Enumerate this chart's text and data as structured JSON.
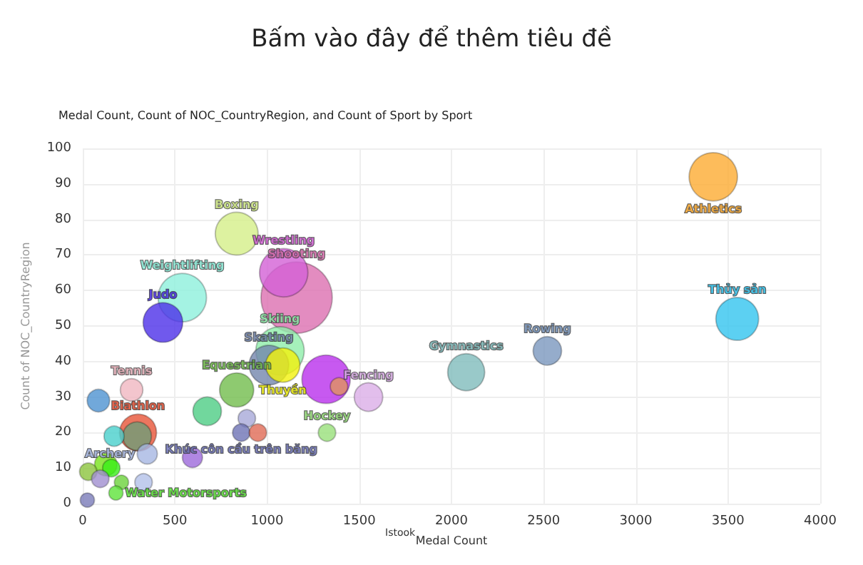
{
  "chart_data": {
    "type": "bubble",
    "title": "Bấm vào đây để thêm tiêu đề",
    "subtitle": "Medal Count, Count of NOC_CountryRegion, and Count of Sport by Sport",
    "xlabel": "Medal Count",
    "ylabel": "Count of NOC_CountryRegion",
    "xlim": [
      0,
      4000
    ],
    "xticks": [
      0,
      500,
      1000,
      1500,
      2000,
      2500,
      3000,
      3500,
      4000
    ],
    "ylim": [
      0,
      100
    ],
    "yticks": [
      0,
      10,
      20,
      30,
      40,
      50,
      60,
      70,
      80,
      90,
      100
    ],
    "grid": true,
    "legend": false,
    "annotations": [
      "Istook"
    ],
    "series": [
      {
        "name": "Shooting",
        "color": "#dc6fb0",
        "x": [
          1160
        ],
        "values": [
          58
        ],
        "sizes": [
          1
        ]
      },
      {
        "name": "Athletics",
        "color": "#fdab32",
        "x": [
          3420
        ],
        "values": [
          92
        ],
        "sizes": [
          0.46
        ]
      },
      {
        "name": "Thủy sản",
        "color": "#33c4ef",
        "x": [
          3550
        ],
        "values": [
          52
        ],
        "sizes": [
          0.36
        ]
      },
      {
        "name": "Rowing",
        "color": "#7a97be",
        "x": [
          2520
        ],
        "values": [
          43
        ],
        "sizes": [
          0.16
        ]
      },
      {
        "name": "Gymnastics",
        "color": "#7fbcbb",
        "x": [
          2080
        ],
        "values": [
          37
        ],
        "sizes": [
          0.27
        ]
      },
      {
        "name": "Boxing",
        "color": "#d5ef88",
        "x": [
          835
        ],
        "values": [
          76
        ],
        "sizes": [
          0.36
        ]
      },
      {
        "name": "Wrestling",
        "color": "#d360d6",
        "x": [
          1090
        ],
        "values": [
          65
        ],
        "sizes": [
          0.46
        ]
      },
      {
        "name": "Weightlifting",
        "color": "#8df0dc",
        "x": [
          540
        ],
        "values": [
          58
        ],
        "sizes": [
          0.46
        ]
      },
      {
        "name": "Judo",
        "color": "#4c2fe8",
        "x": [
          435
        ],
        "values": [
          51
        ],
        "sizes": [
          0.31
        ]
      },
      {
        "name": "Skiing",
        "color": "#8eedaa",
        "x": [
          1070
        ],
        "values": [
          43
        ],
        "sizes": [
          0.46
        ]
      },
      {
        "name": "Skating",
        "color": "#7386ad",
        "x": [
          1010
        ],
        "values": [
          39
        ],
        "sizes": [
          0.31
        ]
      },
      {
        "name": "Thuyền",
        "color": "#f2f20c",
        "x": [
          1085
        ],
        "values": [
          39
        ],
        "sizes": [
          0.23
        ]
      },
      {
        "color": "#b930ec",
        "x": [
          1320
        ],
        "values": [
          35
        ],
        "sizes": [
          0.46
        ]
      },
      {
        "color": "#e0935e",
        "x": [
          1390
        ],
        "values": [
          33
        ],
        "sizes": [
          0.06
        ]
      },
      {
        "name": "Fencing",
        "color": "#dbaee7",
        "x": [
          1550
        ],
        "values": [
          30
        ],
        "sizes": [
          0.16
        ]
      },
      {
        "name": "Hockey",
        "color": "#99e07a",
        "x": [
          1325
        ],
        "values": [
          20
        ],
        "sizes": [
          0.06
        ]
      },
      {
        "name": "Equestrian",
        "color": "#72bd4c",
        "x": [
          835
        ],
        "values": [
          32
        ],
        "sizes": [
          0.23
        ]
      },
      {
        "color": "#4ecd84",
        "x": [
          675
        ],
        "values": [
          26
        ],
        "sizes": [
          0.16
        ]
      },
      {
        "name": "Tennis",
        "color": "#f0b6c0",
        "x": [
          265
        ],
        "values": [
          32
        ],
        "sizes": [
          0.1
        ]
      },
      {
        "color": "#4d92d1",
        "x": [
          85
        ],
        "values": [
          29
        ],
        "sizes": [
          0.1
        ]
      },
      {
        "name": "Biathlon",
        "color": "#e75437",
        "x": [
          300
        ],
        "values": [
          20
        ],
        "sizes": [
          0.27
        ]
      },
      {
        "color": "#6f9e78",
        "x": [
          295
        ],
        "values": [
          19
        ],
        "sizes": [
          0.16
        ]
      },
      {
        "color": "#48cfcc",
        "x": [
          170
        ],
        "values": [
          19
        ],
        "sizes": [
          0.08
        ]
      },
      {
        "color": "#a8a9d8",
        "x": [
          890
        ],
        "values": [
          24
        ],
        "sizes": [
          0.06
        ]
      },
      {
        "name": "Khúc côn cầu trên băng",
        "color": "#6e73b5",
        "x": [
          860
        ],
        "values": [
          20
        ],
        "sizes": [
          0.06
        ]
      },
      {
        "color": "#e06a55",
        "x": [
          950
        ],
        "values": [
          20
        ],
        "sizes": [
          0.06
        ]
      },
      {
        "color": "#9c69db",
        "x": [
          595
        ],
        "values": [
          13
        ],
        "sizes": [
          0.08
        ]
      },
      {
        "name": "Archery",
        "color": "#a6b6e2",
        "x": [
          350
        ],
        "values": [
          14
        ],
        "sizes": [
          0.08
        ]
      },
      {
        "color": "#78e21c",
        "x": [
          125
        ],
        "values": [
          11
        ],
        "sizes": [
          0.1
        ]
      },
      {
        "color": "#39ee18",
        "x": [
          155
        ],
        "values": [
          10
        ],
        "sizes": [
          0.06
        ]
      },
      {
        "color": "#8cc43d",
        "x": [
          30
        ],
        "values": [
          9
        ],
        "sizes": [
          0.06
        ]
      },
      {
        "color": "#a08ed0",
        "x": [
          95
        ],
        "values": [
          7
        ],
        "sizes": [
          0.06
        ]
      },
      {
        "color": "#b3c0e8",
        "x": [
          330
        ],
        "values": [
          6
        ],
        "sizes": [
          0.06
        ]
      },
      {
        "color": "#6bd23b",
        "x": [
          210
        ],
        "values": [
          6
        ],
        "sizes": [
          0.04
        ]
      },
      {
        "name": "Water Motorsports",
        "color": "#5ee43a",
        "x": [
          180
        ],
        "values": [
          3
        ],
        "sizes": [
          0.04
        ]
      },
      {
        "color": "#7b7cb9",
        "x": [
          25
        ],
        "values": [
          1
        ],
        "sizes": [
          0.04
        ]
      }
    ]
  }
}
